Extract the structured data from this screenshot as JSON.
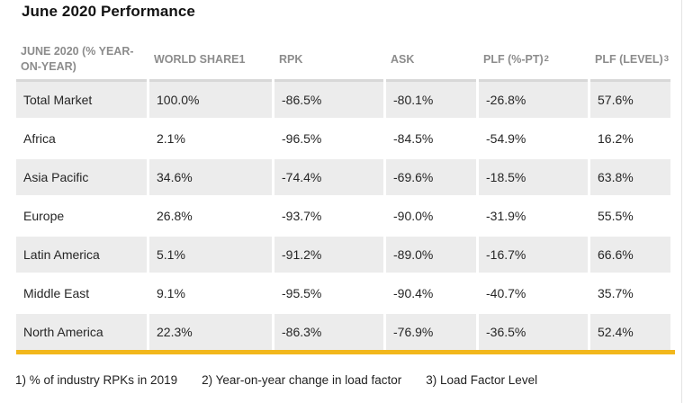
{
  "page": {
    "title": "June 2020 Performance"
  },
  "table": {
    "columns": [
      {
        "label": "JUNE 2020 (% YEAR-ON-YEAR)",
        "sup": ""
      },
      {
        "label": "WORLD SHARE1",
        "sup": ""
      },
      {
        "label": "RPK",
        "sup": ""
      },
      {
        "label": "ASK",
        "sup": ""
      },
      {
        "label": "PLF (%-PT)",
        "sup": "2"
      },
      {
        "label": "PLF (LEVEL)",
        "sup": "3"
      }
    ],
    "rows": [
      {
        "region": "Total Market",
        "world_share": "100.0%",
        "rpk": "-86.5%",
        "ask": "-80.1%",
        "plf_pt": "-26.8%",
        "plf_level": "57.6%"
      },
      {
        "region": "Africa",
        "world_share": "2.1%",
        "rpk": "-96.5%",
        "ask": "-84.5%",
        "plf_pt": "-54.9%",
        "plf_level": "16.2%"
      },
      {
        "region": "Asia Pacific",
        "world_share": "34.6%",
        "rpk": "-74.4%",
        "ask": "-69.6%",
        "plf_pt": "-18.5%",
        "plf_level": "63.8%"
      },
      {
        "region": "Europe",
        "world_share": "26.8%",
        "rpk": "-93.7%",
        "ask": "-90.0%",
        "plf_pt": "-31.9%",
        "plf_level": "55.5%"
      },
      {
        "region": "Latin America",
        "world_share": "5.1%",
        "rpk": "-91.2%",
        "ask": "-89.0%",
        "plf_pt": "-16.7%",
        "plf_level": "66.6%"
      },
      {
        "region": "Middle East",
        "world_share": "9.1%",
        "rpk": "-95.5%",
        "ask": "-90.4%",
        "plf_pt": "-40.7%",
        "plf_level": "35.7%"
      },
      {
        "region": "North America",
        "world_share": "22.3%",
        "rpk": "-86.3%",
        "ask": "-76.9%",
        "plf_pt": "-36.5%",
        "plf_level": "52.4%"
      }
    ]
  },
  "footnotes": [
    "1) % of industry RPKs in 2019",
    "2) Year-on-year change in load factor",
    "3) Load Factor Level"
  ],
  "colors": {
    "accent_bar": "#F2B71C",
    "row_shade": "#ECECEC",
    "header_text": "#8C8C8C",
    "header_border": "#D8D8D8",
    "body_text": "#262626"
  },
  "chart_data": {
    "type": "table",
    "title": "June 2020 Performance",
    "columns": [
      "JUNE 2020 (% YEAR-ON-YEAR)",
      "WORLD SHARE1",
      "RPK",
      "ASK",
      "PLF (%-PT)2",
      "PLF (LEVEL)3"
    ],
    "rows": [
      [
        "Total Market",
        "100.0%",
        "-86.5%",
        "-80.1%",
        "-26.8%",
        "57.6%"
      ],
      [
        "Africa",
        "2.1%",
        "-96.5%",
        "-84.5%",
        "-54.9%",
        "16.2%"
      ],
      [
        "Asia Pacific",
        "34.6%",
        "-74.4%",
        "-69.6%",
        "-18.5%",
        "63.8%"
      ],
      [
        "Europe",
        "26.8%",
        "-93.7%",
        "-90.0%",
        "-31.9%",
        "55.5%"
      ],
      [
        "Latin America",
        "5.1%",
        "-91.2%",
        "-89.0%",
        "-16.7%",
        "66.6%"
      ],
      [
        "Middle East",
        "9.1%",
        "-95.5%",
        "-90.4%",
        "-40.7%",
        "35.7%"
      ],
      [
        "North America",
        "22.3%",
        "-86.3%",
        "-76.9%",
        "-36.5%",
        "52.4%"
      ]
    ],
    "footnotes": [
      "1) % of industry RPKs in 2019",
      "2) Year-on-year change in load factor",
      "3) Load Factor Level"
    ]
  }
}
